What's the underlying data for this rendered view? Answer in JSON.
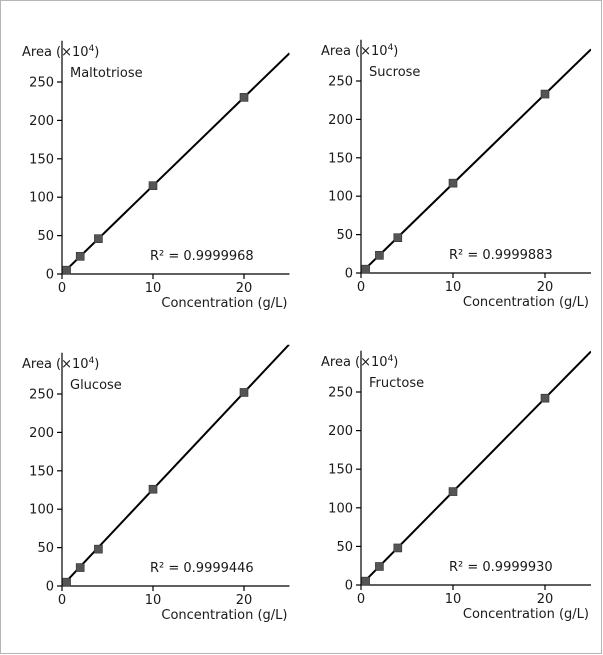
{
  "chart_data": [
    {
      "type": "scatter",
      "panel_label": "Maltotriose",
      "ylabel": "Area (×10",
      "ylabel_exp": "4",
      "ylabel_end": ")",
      "xlabel": "Concentration (g/L)",
      "annotation": "R² = 0.9999968",
      "xlim": [
        0,
        25
      ],
      "ylim": [
        0,
        275
      ],
      "xticks": [
        0,
        10,
        20
      ],
      "yticks": [
        0,
        50,
        100,
        150,
        200,
        250
      ],
      "x": [
        0.5,
        2,
        4,
        10,
        20
      ],
      "y": [
        5,
        23,
        46,
        115,
        230
      ],
      "fit": {
        "slope": 11.5,
        "intercept": 0
      },
      "marker_color": "#555555",
      "line_color": "#000000"
    },
    {
      "type": "scatter",
      "panel_label": "Sucrose",
      "ylabel": "Area (×10",
      "ylabel_exp": "4",
      "ylabel_end": ")",
      "xlabel": "Concentration (g/L)",
      "annotation": "R² = 0.9999883",
      "xlim": [
        0,
        25
      ],
      "ylim": [
        0,
        275
      ],
      "xticks": [
        0,
        10,
        20
      ],
      "yticks": [
        0,
        50,
        100,
        150,
        200,
        250
      ],
      "x": [
        0.5,
        2,
        4,
        10,
        20
      ],
      "y": [
        5,
        23,
        46,
        117,
        233
      ],
      "fit": {
        "slope": 11.65,
        "intercept": 0
      },
      "marker_color": "#555555",
      "line_color": "#000000"
    },
    {
      "type": "scatter",
      "panel_label": "Glucose",
      "ylabel": "Area (×10",
      "ylabel_exp": "4",
      "ylabel_end": ")",
      "xlabel": "Concentration (g/L)",
      "annotation": "R² = 0.9999446",
      "xlim": [
        0,
        25
      ],
      "ylim": [
        0,
        275
      ],
      "xticks": [
        0,
        10,
        20
      ],
      "yticks": [
        0,
        50,
        100,
        150,
        200,
        250
      ],
      "x": [
        0.5,
        2,
        4,
        10,
        20
      ],
      "y": [
        5,
        24,
        48,
        126,
        252
      ],
      "fit": {
        "slope": 12.6,
        "intercept": 0
      },
      "marker_color": "#555555",
      "line_color": "#000000"
    },
    {
      "type": "scatter",
      "panel_label": "Fructose",
      "ylabel": "Area (×10",
      "ylabel_exp": "4",
      "ylabel_end": ")",
      "xlabel": "Concentration (g/L)",
      "annotation": "R² = 0.9999930",
      "xlim": [
        0,
        25
      ],
      "ylim": [
        0,
        275
      ],
      "xticks": [
        0,
        10,
        20
      ],
      "yticks": [
        0,
        50,
        100,
        150,
        200,
        250
      ],
      "x": [
        0.5,
        2,
        4,
        10,
        20
      ],
      "y": [
        5,
        24,
        48,
        121,
        242
      ],
      "fit": {
        "slope": 12.1,
        "intercept": 0
      },
      "marker_color": "#555555",
      "line_color": "#000000"
    }
  ],
  "frame_color": "#b5b5b5"
}
